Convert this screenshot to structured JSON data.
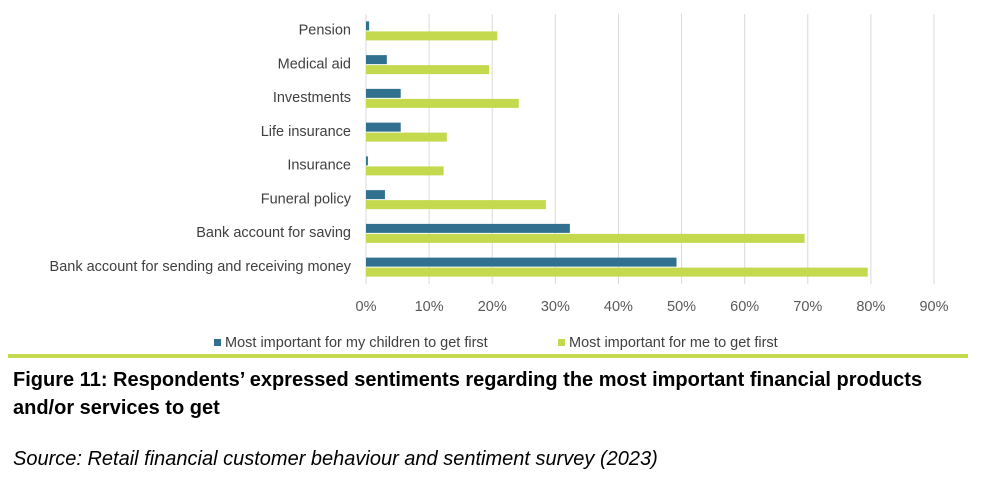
{
  "colors": {
    "series_children": "#31708f",
    "series_me": "#c4d94e",
    "grid": "#d9d9d9",
    "rule": "#c4d94e"
  },
  "chart_data": {
    "type": "bar",
    "orientation": "horizontal",
    "categories": [
      "Pension",
      "Medical aid",
      "Investments",
      "Life insurance",
      "Insurance",
      "Funeral policy",
      "Bank account for saving",
      "Bank account for sending and receiving money"
    ],
    "series": [
      {
        "name": "Most important for my children to get first",
        "color": "#31708f",
        "values": [
          0.5,
          3.3,
          5.5,
          5.5,
          0.3,
          3.0,
          32.3,
          49.2
        ]
      },
      {
        "name": "Most important for me to get first",
        "color": "#c4d94e",
        "values": [
          20.8,
          19.5,
          24.2,
          12.8,
          12.3,
          28.5,
          69.5,
          79.5
        ]
      }
    ],
    "xlim": [
      0,
      90
    ],
    "xticks": [
      "0%",
      "10%",
      "20%",
      "30%",
      "40%",
      "50%",
      "60%",
      "70%",
      "80%",
      "90%"
    ],
    "xtick_values": [
      0,
      10,
      20,
      30,
      40,
      50,
      60,
      70,
      80,
      90
    ],
    "grid": "vertical",
    "legend_position": "bottom"
  },
  "caption": {
    "title": "Figure 11: Respondents’ expressed sentiments regarding the most important financial products and/or services to get",
    "source": "Source: Retail financial customer behaviour and sentiment survey (2023)"
  }
}
